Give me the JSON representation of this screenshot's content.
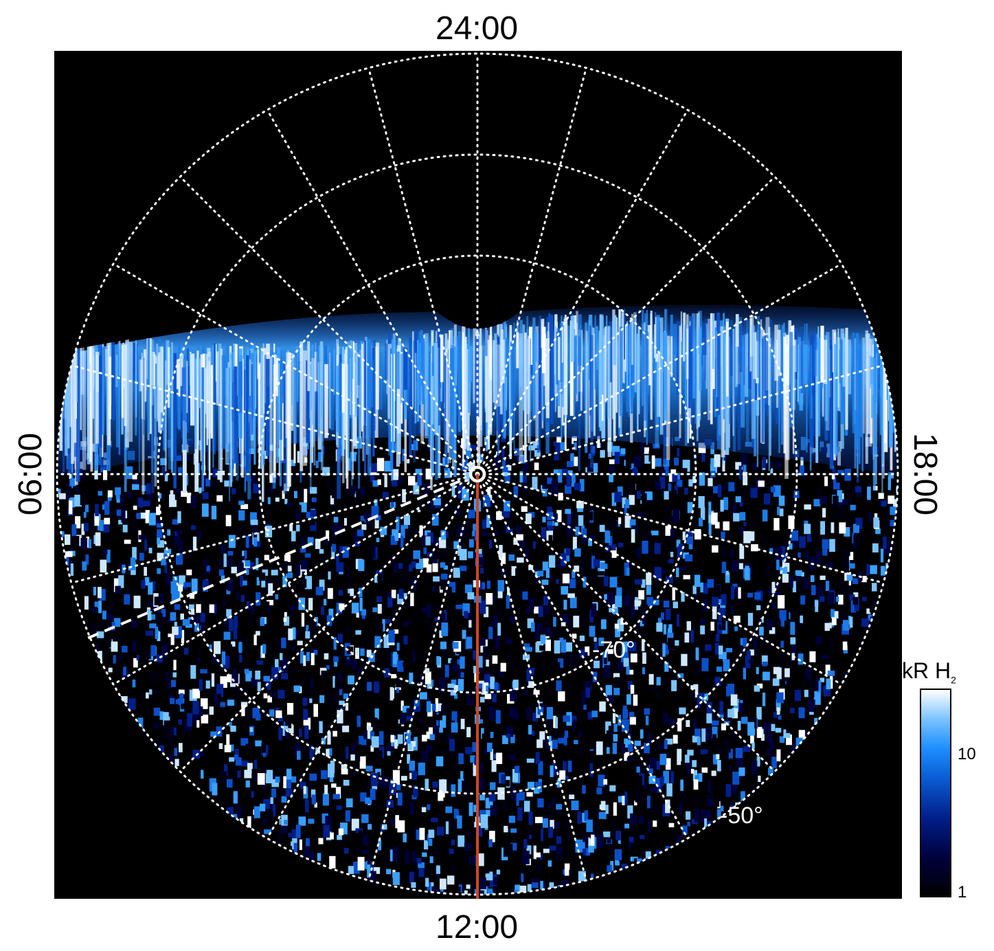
{
  "plot": {
    "local_time_labels": {
      "top": "24:00",
      "bottom": "12:00",
      "left": "06:00",
      "right": "18:00"
    },
    "latitude_labels": [
      "-70°",
      "-50°"
    ],
    "colors": {
      "background": "#000000",
      "grid": "#ffffff",
      "meridian_line": "#d2461e",
      "aurora_low": "#001f8a",
      "aurora_mid": "#1e90ff",
      "aurora_high": "#ffffff"
    }
  },
  "colorbar": {
    "title_main": "kR H",
    "title_sub": "2",
    "ticks": [
      "10",
      "1"
    ]
  }
}
